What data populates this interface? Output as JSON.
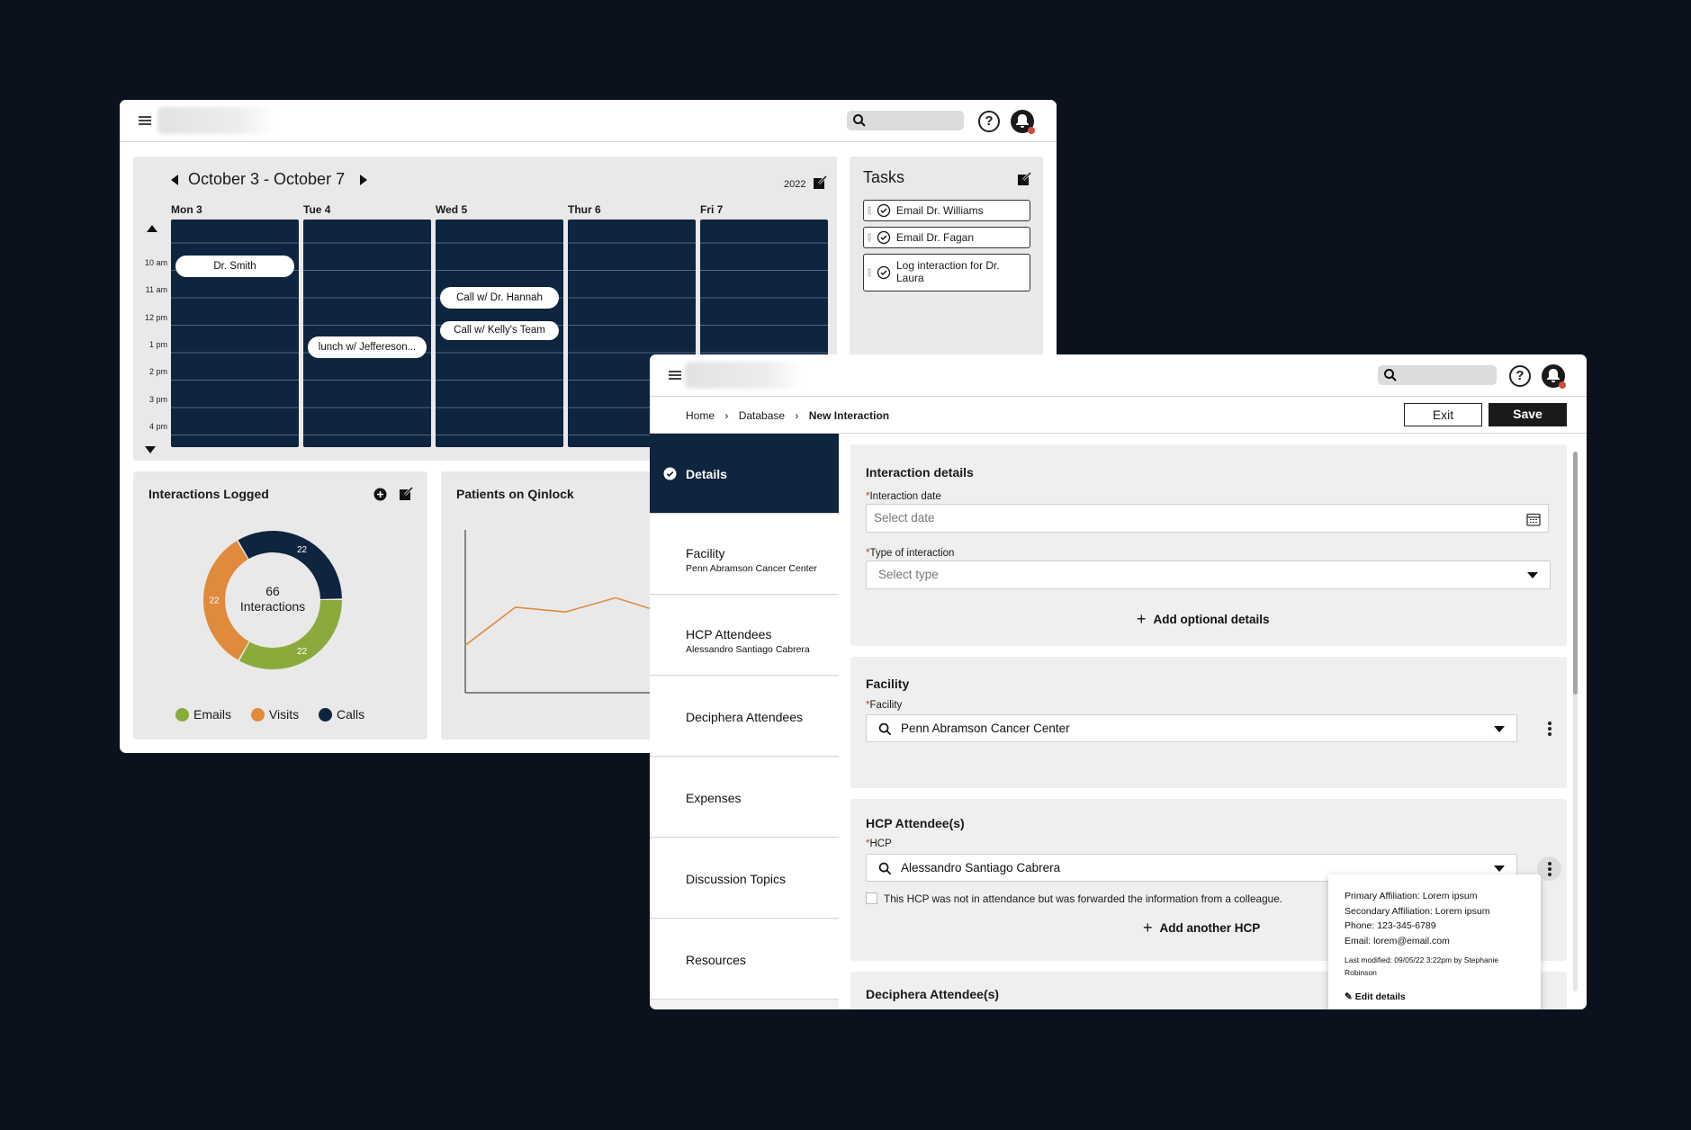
{
  "colors": {
    "background": "#0b121e",
    "navy": "#0e243f",
    "emails": "#8aab3c",
    "visits": "#e08a3c",
    "calls": "#0e243f",
    "line": "#e08a3c"
  },
  "dashboard": {
    "calendar": {
      "week_range": "October 3 - October 7",
      "year": "2022",
      "days": [
        "Mon 3",
        "Tue 4",
        "Wed 5",
        "Thur 6",
        "Fri 7"
      ],
      "hours": [
        "10 am",
        "11 am",
        "12 pm",
        "1 pm",
        "2 pm",
        "3 pm",
        "4 pm"
      ],
      "events": [
        {
          "label": "Dr. Smith",
          "day": "Mon 3"
        },
        {
          "label": "lunch w/ Jeffereson...",
          "day": "Tue 4"
        },
        {
          "label": "Call w/ Dr. Hannah",
          "day": "Wed 5"
        },
        {
          "label": "Call w/ Kelly's Team",
          "day": "Wed 5"
        }
      ]
    },
    "tasks": {
      "title": "Tasks",
      "items": [
        "Email Dr. Williams",
        "Email Dr. Fagan",
        "Log interaction for Dr. Laura"
      ]
    },
    "interactions": {
      "title": "Interactions Logged",
      "center_count": "66",
      "center_label": "Interactions",
      "legend": [
        "Emails",
        "Visits",
        "Calls"
      ]
    },
    "patients": {
      "title": "Patients on Qinlock"
    }
  },
  "chart_data": [
    {
      "type": "pie",
      "title": "Interactions Logged",
      "categories": [
        "Calls",
        "Emails",
        "Visits"
      ],
      "values": [
        22,
        22,
        22
      ],
      "total_label": "66 Interactions"
    },
    {
      "type": "line",
      "title": "Patients on Qinlock",
      "xlabel": "",
      "ylabel": "",
      "x": [
        0,
        1,
        2,
        3,
        4,
        5
      ],
      "values": [
        3.0,
        5.4,
        5.1,
        6.0,
        5.0,
        5.2
      ],
      "ylim": [
        0,
        10
      ]
    }
  ],
  "form": {
    "breadcrumb": [
      "Home",
      "Database",
      "New Interaction"
    ],
    "exit_label": "Exit",
    "save_label": "Save",
    "nav": [
      {
        "label": "Details",
        "sub": ""
      },
      {
        "label": "Facility",
        "sub": "Penn Abramson Cancer Center"
      },
      {
        "label": "HCP Attendees",
        "sub": "Alessandro Santiago Cabrera"
      },
      {
        "label": "Deciphera Attendees",
        "sub": ""
      },
      {
        "label": "Expenses",
        "sub": ""
      },
      {
        "label": "Discussion Topics",
        "sub": ""
      },
      {
        "label": "Resources",
        "sub": ""
      }
    ],
    "details": {
      "title": "Interaction details",
      "date_label": "Interaction date",
      "date_placeholder": "Select date",
      "type_label": "Type of interaction",
      "type_placeholder": "Select type",
      "add_optional": "Add optional details"
    },
    "facility": {
      "title": "Facility",
      "label": "Facility",
      "value": "Penn Abramson Cancer Center"
    },
    "hcp": {
      "title": "HCP Attendee(s)",
      "label": "HCP",
      "value": "Alessandro Santiago Cabrera",
      "checkbox_label": "This HCP was not in attendance but was forwarded the information from a colleague.",
      "add_another": "Add another HCP"
    },
    "deciphera": {
      "title": "Deciphera Attendee(s)"
    },
    "popover": {
      "primary": "Primary Affiliation: Lorem ipsum",
      "secondary": "Secondary Affiliation: Lorem ipsum",
      "phone": "Phone: 123-345-6789",
      "email": "Email: lorem@email.com",
      "modified": "Last modified: 09/05/22 3:22pm by Stephanie Robinson",
      "edit": "Edit details"
    }
  }
}
